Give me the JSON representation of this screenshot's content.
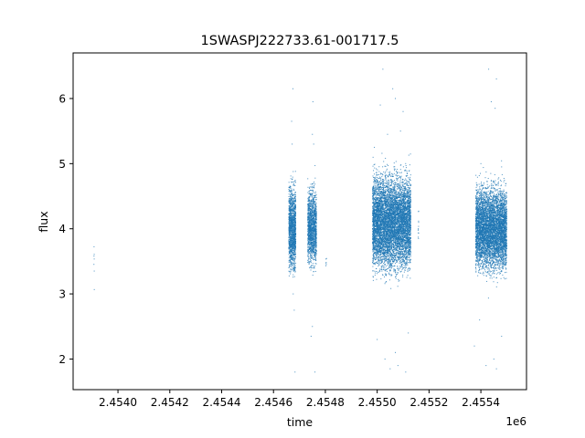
{
  "chart_data": {
    "type": "scatter",
    "title": "1SWASPJ222733.61-001717.5",
    "xlabel": "time",
    "ylabel": "flux",
    "x_offset_label": "1e6",
    "xlim": [
      2453827,
      2455576
    ],
    "ylim": [
      1.53,
      6.7
    ],
    "xticks": [
      2454000,
      2454200,
      2454400,
      2454600,
      2454800,
      2455000,
      2455200,
      2455400
    ],
    "xtick_labels": [
      "2.4540",
      "2.4542",
      "2.4544",
      "2.4546",
      "2.4548",
      "2.4550",
      "2.4552",
      "2.4554"
    ],
    "yticks": [
      2,
      3,
      4,
      5,
      6
    ],
    "ytick_labels": [
      "2",
      "3",
      "4",
      "5",
      "6"
    ],
    "grid": false,
    "marker_color": "#1f77b4",
    "clusters": [
      {
        "t_start": 2453907,
        "t_end": 2453909,
        "flux_min": 2.85,
        "flux_max": 4.0,
        "n": 7,
        "outliers": []
      },
      {
        "t_start": 2454659,
        "t_end": 2454686,
        "flux_min": 3.2,
        "flux_max": 4.8,
        "n": 1400,
        "outliers": [
          [
            2454675,
            6.15
          ],
          [
            2454670,
            5.65
          ],
          [
            2454672,
            5.3
          ],
          [
            2454680,
            2.75
          ],
          [
            2454683,
            1.8
          ],
          [
            2454676,
            3.0
          ]
        ]
      },
      {
        "t_start": 2454732,
        "t_end": 2454766,
        "flux_min": 3.3,
        "flux_max": 4.75,
        "n": 1400,
        "outliers": [
          [
            2454752,
            5.95
          ],
          [
            2454750,
            5.45
          ],
          [
            2454755,
            5.3
          ],
          [
            2454745,
            2.35
          ],
          [
            2454750,
            2.5
          ],
          [
            2454760,
            1.8
          ]
        ]
      },
      {
        "t_start": 2454802,
        "t_end": 2454805,
        "flux_min": 3.3,
        "flux_max": 3.6,
        "n": 6,
        "outliers": []
      },
      {
        "t_start": 2454982,
        "t_end": 2455130,
        "flux_min": 3.2,
        "flux_max": 5.0,
        "n": 7000,
        "outliers": [
          [
            2455022,
            6.45
          ],
          [
            2455060,
            6.15
          ],
          [
            2455070,
            6.0
          ],
          [
            2455100,
            5.8
          ],
          [
            2455012,
            5.9
          ],
          [
            2455040,
            5.45
          ],
          [
            2455090,
            5.5
          ],
          [
            2455030,
            2.0
          ],
          [
            2455050,
            1.85
          ],
          [
            2455080,
            1.9
          ],
          [
            2455110,
            1.8
          ],
          [
            2455000,
            2.3
          ],
          [
            2455070,
            2.1
          ],
          [
            2455120,
            2.4
          ]
        ]
      },
      {
        "t_start": 2455158,
        "t_end": 2455160,
        "flux_min": 3.55,
        "flux_max": 4.5,
        "n": 12,
        "outliers": []
      },
      {
        "t_start": 2455380,
        "t_end": 2455500,
        "flux_min": 3.2,
        "flux_max": 4.8,
        "n": 5500,
        "outliers": [
          [
            2455430,
            6.45
          ],
          [
            2455460,
            6.3
          ],
          [
            2455440,
            5.95
          ],
          [
            2455455,
            5.85
          ],
          [
            2455400,
            5.0
          ],
          [
            2455480,
            4.95
          ],
          [
            2455375,
            2.2
          ],
          [
            2455420,
            1.9
          ],
          [
            2455460,
            1.85
          ],
          [
            2455450,
            2.0
          ],
          [
            2455480,
            2.35
          ],
          [
            2455395,
            2.6
          ]
        ]
      }
    ]
  }
}
